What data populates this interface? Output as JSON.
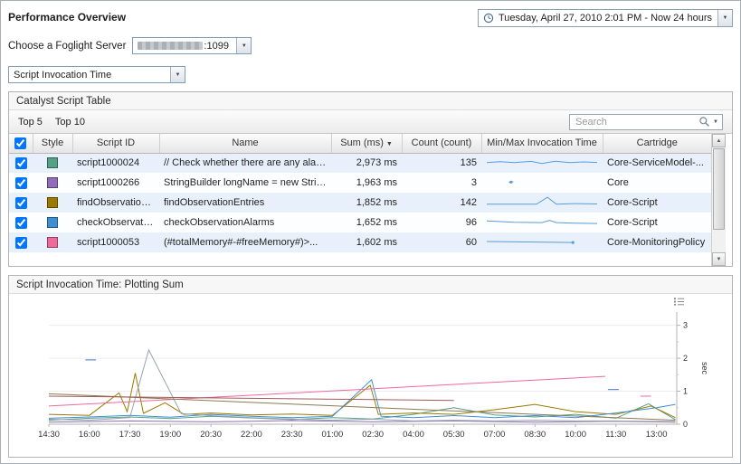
{
  "header": {
    "title": "Performance Overview",
    "time_range": "Tuesday, April 27, 2010 2:01 PM - Now 24 hours"
  },
  "server": {
    "label": "Choose a Foglight Server",
    "value_suffix": ":1099"
  },
  "metric_select": {
    "value": "Script Invocation Time"
  },
  "table_panel": {
    "title": "Catalyst Script Table",
    "toolbar": {
      "top5": "Top 5",
      "top10": "Top 10",
      "search_placeholder": "Search"
    },
    "columns": [
      "Style",
      "Script ID",
      "Name",
      "Sum (ms)",
      "Count (count)",
      "Min/Max Invocation Time",
      "Cartridge"
    ],
    "sort_column": "Sum (ms)",
    "sort_direction": "desc",
    "rows": [
      {
        "checked": true,
        "color": "#55a186",
        "script_id": "script1000024",
        "name": "// Check whether there are any alar...",
        "sum": "2,973 ms",
        "count": "135",
        "cartridge": "Core-ServiceModel-...",
        "spark": [
          [
            0,
            0.45
          ],
          [
            0.12,
            0.52
          ],
          [
            0.25,
            0.44
          ],
          [
            0.4,
            0.54
          ],
          [
            0.5,
            0.38
          ],
          [
            0.62,
            0.55
          ],
          [
            0.75,
            0.44
          ],
          [
            0.88,
            0.5
          ],
          [
            1,
            0.46
          ]
        ]
      },
      {
        "checked": true,
        "color": "#8f6db8",
        "script_id": "script1000266",
        "name": "StringBuilder longName = new Strin...",
        "sum": "1,963 ms",
        "count": "3",
        "cartridge": "Core",
        "spark": [
          [
            0.2,
            0.45
          ],
          [
            0.24,
            0.52
          ]
        ],
        "dot": [
          0.22,
          0.48
        ]
      },
      {
        "checked": true,
        "color": "#9c7a00",
        "script_id": "findObservationE...",
        "name": "findObservationEntries",
        "sum": "1,852 ms",
        "count": "142",
        "cartridge": "Core-Script",
        "spark": [
          [
            0,
            0.3
          ],
          [
            0.45,
            0.3
          ],
          [
            0.55,
            0.85
          ],
          [
            0.63,
            0.3
          ],
          [
            0.8,
            0.35
          ],
          [
            1,
            0.32
          ]
        ]
      },
      {
        "checked": true,
        "color": "#3f8fd2",
        "script_id": "checkObservation...",
        "name": "checkObservationAlarms",
        "sum": "1,652 ms",
        "count": "96",
        "cartridge": "Core-Script",
        "spark": [
          [
            0,
            0.55
          ],
          [
            0.25,
            0.45
          ],
          [
            0.5,
            0.42
          ],
          [
            0.57,
            0.6
          ],
          [
            0.63,
            0.42
          ],
          [
            0.8,
            0.38
          ],
          [
            1,
            0.35
          ]
        ]
      },
      {
        "checked": true,
        "color": "#f0699d",
        "script_id": "script1000053",
        "name": "(#totalMemory#-#freeMemory#)>...",
        "sum": "1,602 ms",
        "count": "60",
        "cartridge": "Core-MonitoringPolicy",
        "spark": [
          [
            0,
            0.5
          ],
          [
            0.78,
            0.42
          ]
        ],
        "dot": [
          0.78,
          0.42
        ]
      }
    ]
  },
  "chart_panel": {
    "title": "Script Invocation Time: Plotting Sum"
  },
  "chart_data": {
    "type": "line",
    "title": "Script Invocation Time: Plotting Sum",
    "ylabel": "sec",
    "ylim": [
      0,
      3.4
    ],
    "y_ticks": [
      0,
      1,
      2,
      3
    ],
    "x_ticks": [
      "14:30",
      "16:00",
      "17:30",
      "19:00",
      "20:30",
      "22:00",
      "23:30",
      "01:00",
      "02:30",
      "04:00",
      "05:30",
      "07:00",
      "08:30",
      "10:00",
      "11:30",
      "13:00"
    ],
    "x_hours_range": [
      0,
      23.25
    ],
    "x_tick_interval_hours": 1.5,
    "legend_position": "none",
    "grid": true,
    "series": [
      {
        "name": "script1000024",
        "color": "#55a186",
        "points": [
          [
            0,
            0.12
          ],
          [
            1.5,
            0.18
          ],
          [
            3,
            0.22
          ],
          [
            4.5,
            0.17
          ],
          [
            6,
            0.24
          ],
          [
            7.5,
            0.19
          ],
          [
            9,
            0.14
          ],
          [
            10.5,
            0.2
          ],
          [
            12,
            0.16
          ],
          [
            13.5,
            0.3
          ],
          [
            15,
            0.5
          ],
          [
            16.5,
            0.28
          ],
          [
            18,
            0.22
          ],
          [
            19.5,
            0.3
          ],
          [
            21,
            0.18
          ],
          [
            22.2,
            0.62
          ],
          [
            23.2,
            0.14
          ]
        ]
      },
      {
        "name": "script1000266",
        "color": "#8f6db8",
        "points": [
          [
            0,
            0.06
          ],
          [
            3,
            0.1
          ],
          [
            6,
            0.07
          ],
          [
            9,
            0.11
          ],
          [
            12,
            0.07
          ],
          [
            15,
            0.1
          ],
          [
            18,
            0.06
          ],
          [
            21,
            0.09
          ],
          [
            23.2,
            0.06
          ]
        ]
      },
      {
        "name": "findObservationEntries",
        "color": "#9c7a00",
        "points": [
          [
            0,
            0.3
          ],
          [
            1.5,
            0.27
          ],
          [
            2.6,
            0.95
          ],
          [
            2.9,
            0.38
          ],
          [
            3.2,
            1.55
          ],
          [
            3.5,
            0.33
          ],
          [
            4.3,
            0.65
          ],
          [
            5,
            0.3
          ],
          [
            6,
            0.34
          ],
          [
            7.5,
            0.28
          ],
          [
            9,
            0.31
          ],
          [
            10.5,
            0.27
          ],
          [
            11.9,
            1.18
          ],
          [
            12.2,
            0.3
          ],
          [
            13.5,
            0.34
          ],
          [
            15,
            0.3
          ],
          [
            16.5,
            0.44
          ],
          [
            18,
            0.6
          ],
          [
            19.5,
            0.38
          ],
          [
            21,
            0.3
          ],
          [
            22.3,
            0.55
          ],
          [
            23.2,
            0.2
          ]
        ]
      },
      {
        "name": "checkObservationAlarms",
        "color": "#3f8fd2",
        "points": [
          [
            0,
            0.18
          ],
          [
            1.5,
            0.22
          ],
          [
            3,
            0.27
          ],
          [
            4.5,
            0.21
          ],
          [
            6,
            0.3
          ],
          [
            7.5,
            0.24
          ],
          [
            9,
            0.2
          ],
          [
            10.5,
            0.24
          ],
          [
            11.95,
            1.35
          ],
          [
            12.3,
            0.24
          ],
          [
            13.5,
            0.2
          ],
          [
            15,
            0.26
          ],
          [
            16.5,
            0.2
          ],
          [
            18,
            0.26
          ],
          [
            19.5,
            0.2
          ],
          [
            21,
            0.34
          ],
          [
            22.5,
            0.5
          ],
          [
            23.2,
            0.6
          ]
        ]
      },
      {
        "name": "script1000053",
        "color": "#f0699d",
        "points": [
          [
            0,
            0.55
          ],
          [
            20.6,
            1.45
          ]
        ]
      },
      {
        "name": "unlabeled-gray",
        "color": "#98a2ac",
        "points": [
          [
            0,
            0.15
          ],
          [
            1.5,
            0.12
          ],
          [
            3,
            0.2
          ],
          [
            3.7,
            2.25
          ],
          [
            4.9,
            0.32
          ],
          [
            6,
            0.26
          ],
          [
            7.5,
            0.2
          ],
          [
            9,
            0.16
          ],
          [
            10.5,
            0.12
          ],
          [
            12,
            0.15
          ],
          [
            13.5,
            0.1
          ],
          [
            15,
            0.12
          ],
          [
            16.5,
            0.1
          ],
          [
            18,
            0.12
          ],
          [
            19.5,
            0.1
          ],
          [
            21,
            0.1
          ],
          [
            23.2,
            0.08
          ]
        ]
      },
      {
        "name": "unlabeled-declining",
        "color": "#8a7a52",
        "points": [
          [
            0,
            0.92
          ],
          [
            23.2,
            0.12
          ]
        ]
      },
      {
        "name": "unlabeled-maroon",
        "color": "#a05a5a",
        "points": [
          [
            0,
            0.85
          ],
          [
            15,
            0.72
          ]
        ]
      },
      {
        "name": "unlabeled-dash-1",
        "color": "#4472c4",
        "points": [
          [
            1.35,
            1.95
          ],
          [
            1.75,
            1.95
          ]
        ]
      },
      {
        "name": "unlabeled-dash-2",
        "color": "#4472c4",
        "points": [
          [
            20.7,
            1.05
          ],
          [
            21.1,
            1.05
          ]
        ]
      },
      {
        "name": "unlabeled-dash-3",
        "color": "#f0699d",
        "points": [
          [
            21.9,
            0.85
          ],
          [
            22.3,
            0.85
          ]
        ]
      }
    ]
  }
}
